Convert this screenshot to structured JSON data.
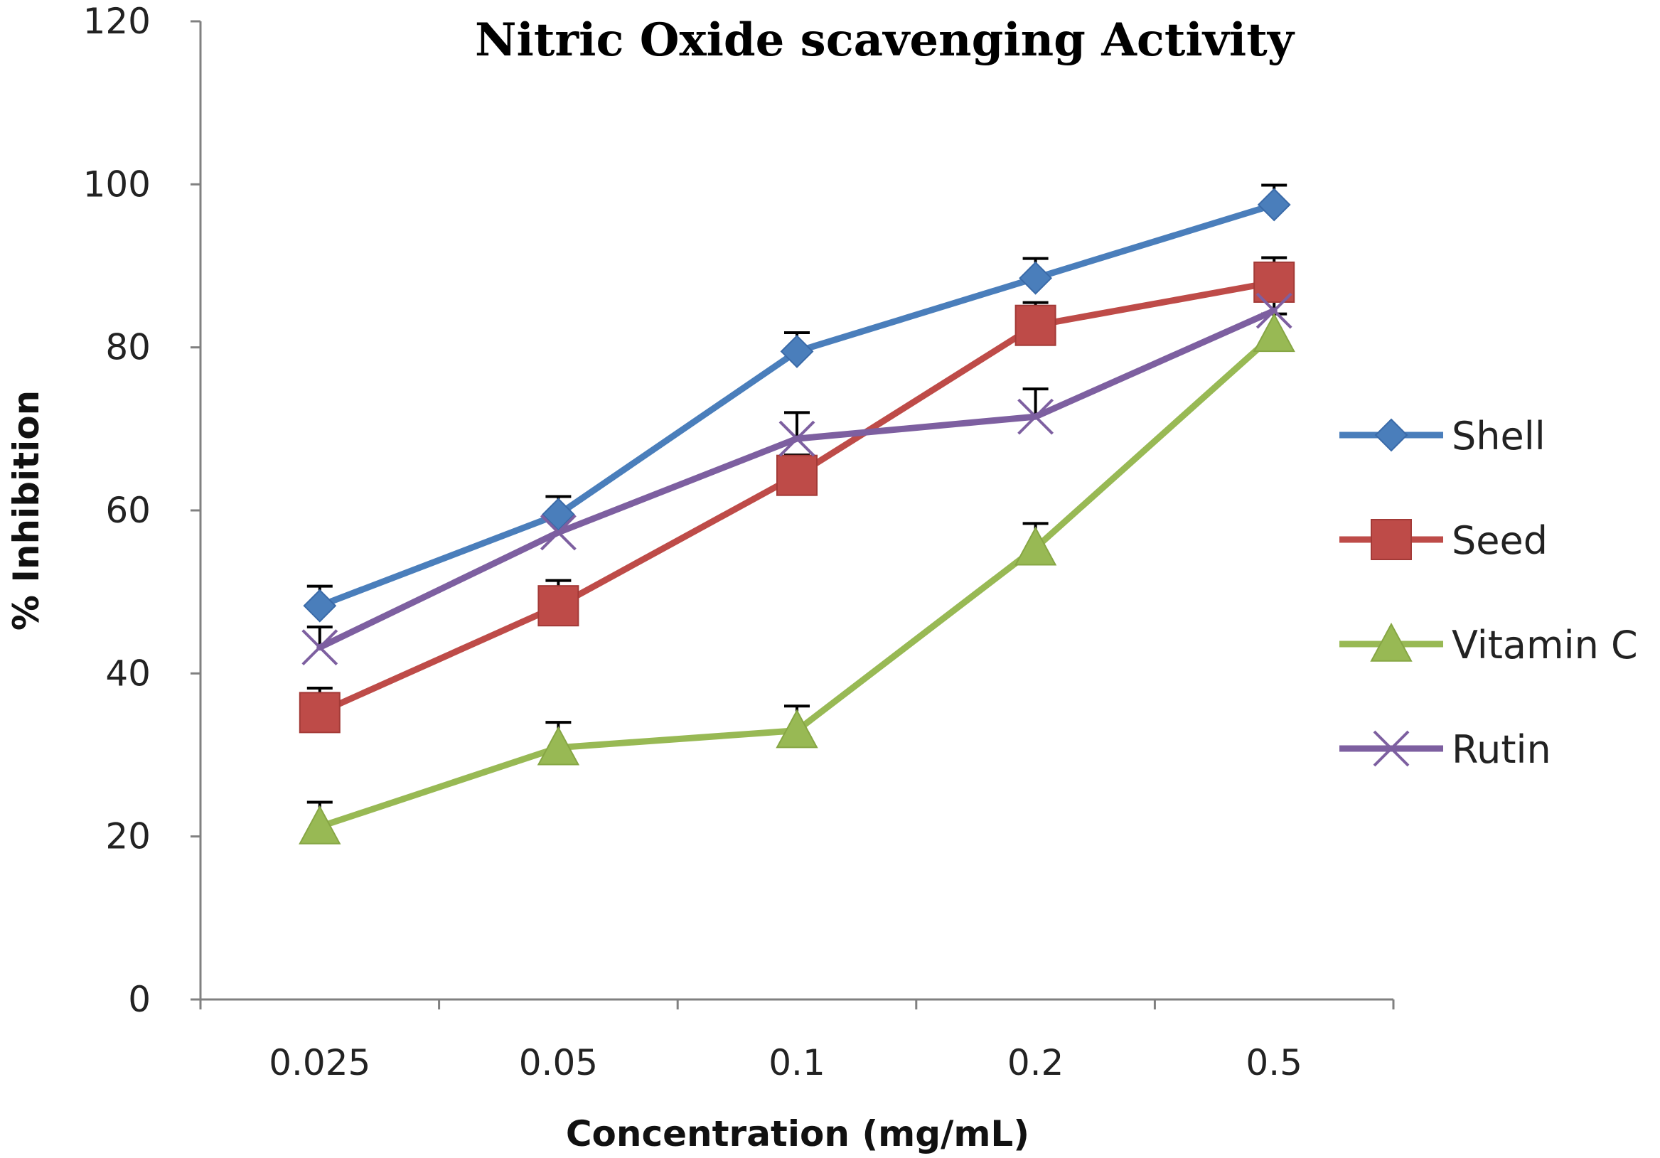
{
  "chart_data": {
    "type": "line",
    "title": "Nitric Oxide   scavenging Activity",
    "xlabel": "Concentration (mg/mL)",
    "ylabel": "% Inhibition",
    "categories": [
      "0.025",
      "0.05",
      "0.1",
      "0.2",
      "0.5"
    ],
    "ylim": [
      0,
      120
    ],
    "yticks": [
      0,
      20,
      40,
      60,
      80,
      100,
      120
    ],
    "grid": false,
    "legend_position": "right",
    "series": [
      {
        "name": "Shell",
        "color": "#4a7ebb",
        "marker": "diamond",
        "values": [
          48.3,
          59.5,
          79.5,
          88.5,
          97.5
        ],
        "errors": [
          2.4,
          2.2,
          2.3,
          2.4,
          2.4
        ]
      },
      {
        "name": "Seed",
        "color": "#be4b48",
        "marker": "square",
        "values": [
          35.2,
          48.3,
          64.3,
          82.7,
          88.0
        ],
        "errors": [
          3.0,
          3.1,
          2.5,
          2.8,
          3.0
        ]
      },
      {
        "name": "Vitamin C",
        "color": "#98b954",
        "marker": "triangle",
        "values": [
          21.2,
          30.9,
          33.0,
          55.4,
          81.6
        ],
        "errors": [
          3.0,
          3.1,
          3.0,
          3.0,
          2.5
        ]
      },
      {
        "name": "Rutin",
        "color": "#7d5fa0",
        "marker": "x",
        "values": [
          43.2,
          57.3,
          68.8,
          71.5,
          84.5
        ],
        "errors": [
          2.5,
          2.4,
          3.2,
          3.4,
          2.5
        ]
      }
    ]
  }
}
